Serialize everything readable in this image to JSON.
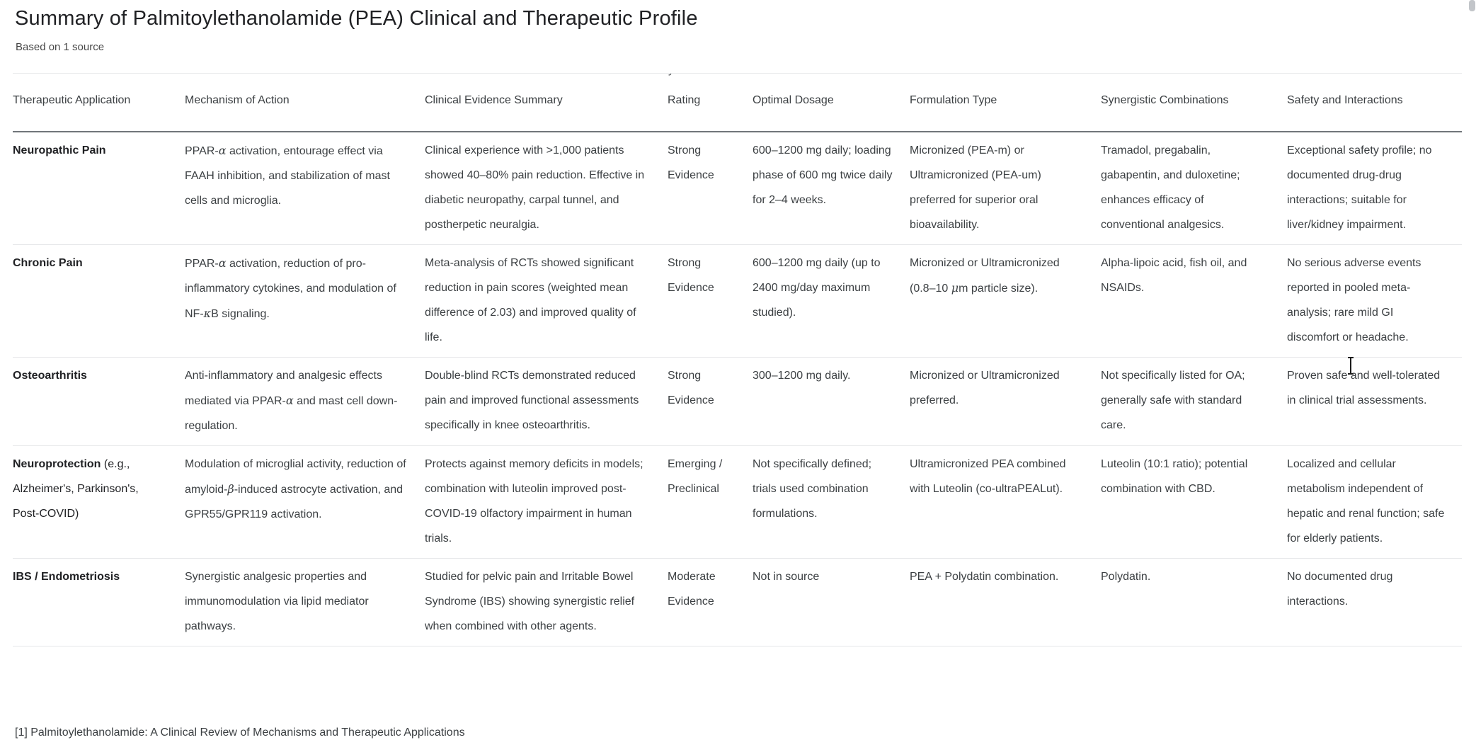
{
  "page": {
    "title": "Summary of Palmitoylethanolamide (PEA) Clinical and Therapeutic Profile",
    "subtitle": "Based on 1 source",
    "citation": "[1] Palmitoylethanolamide: A Clinical Review of Mechanisms and Therapeutic Applications"
  },
  "table": {
    "columns": [
      {
        "label": "Therapeutic Application"
      },
      {
        "label": "Mechanism of Action"
      },
      {
        "label": "Clinical Evidence Summary"
      },
      {
        "label": "Rating",
        "clipped_line_above": "y"
      },
      {
        "label": "Optimal Dosage"
      },
      {
        "label": "Formulation Type"
      },
      {
        "label": "Synergistic Combinations"
      },
      {
        "label": "Safety and Interactions"
      }
    ],
    "rows": [
      {
        "application": "Neuropathic Pain",
        "application_suffix": "",
        "mechanism": "PPAR-α activation, entourage effect via FAAH inhibition, and stabilization of mast cells and microglia.",
        "evidence": "Clinical experience with >1,000 patients showed 40–80% pain reduction. Effective in diabetic neuropathy, carpal tunnel, and postherpetic neuralgia.",
        "rating": "Strong Evidence",
        "dosage": "600–1200 mg daily; loading phase of 600 mg twice daily for 2–4 weeks.",
        "formulation": "Micronized (PEA-m) or Ultramicronized (PEA-um) preferred for superior oral bioavailability.",
        "synergy": "Tramadol, pregabalin, gabapentin, and duloxetine; enhances efficacy of conventional analgesics.",
        "safety": "Exceptional safety profile; no documented drug-drug interactions; suitable for liver/kidney impairment."
      },
      {
        "application": "Chronic Pain",
        "application_suffix": "",
        "mechanism": "PPAR-α activation, reduction of pro-inflammatory cytokines, and modulation of NF-κB signaling.",
        "evidence": "Meta-analysis of RCTs showed significant reduction in pain scores (weighted mean difference of 2.03) and improved quality of life.",
        "rating": "Strong Evidence",
        "dosage": "600–1200 mg daily (up to 2400 mg/day maximum studied).",
        "formulation": "Micronized or Ultramicronized (0.8–10 μm particle size).",
        "synergy": "Alpha-lipoic acid, fish oil, and NSAIDs.",
        "safety": "No serious adverse events reported in pooled meta-analysis; rare mild GI discomfort or headache."
      },
      {
        "application": "Osteoarthritis",
        "application_suffix": "",
        "mechanism": "Anti-inflammatory and analgesic effects mediated via PPAR-α and mast cell down-regulation.",
        "evidence": "Double-blind RCTs demonstrated reduced pain and improved functional assessments specifically in knee osteoarthritis.",
        "rating": "Strong Evidence",
        "dosage": "300–1200 mg daily.",
        "formulation": "Micronized or Ultramicronized preferred.",
        "synergy": "Not specifically listed for OA; generally safe with standard care.",
        "safety": "Proven safe and well-tolerated in clinical trial assessments."
      },
      {
        "application": "Neuroprotection",
        "application_suffix": " (e.g., Alzheimer's, Parkinson's, Post-COVID)",
        "mechanism": "Modulation of microglial activity, reduction of amyloid-β-induced astrocyte activation, and GPR55/GPR119 activation.",
        "evidence": "Protects against memory deficits in models; combination with luteolin improved post-COVID-19 olfactory impairment in human trials.",
        "rating": "Emerging / Preclinical",
        "dosage": "Not specifically defined; trials used combination formulations.",
        "formulation": "Ultramicronized PEA combined with Luteolin (co-ultraPEALut).",
        "synergy": "Luteolin (10:1 ratio); potential combination with CBD.",
        "safety": "Localized and cellular metabolism independent of hepatic and renal function; safe for elderly patients."
      },
      {
        "application": "IBS / Endometriosis",
        "application_suffix": "",
        "mechanism": "Synergistic analgesic properties and immunomodulation via lipid mediator pathways.",
        "evidence": "Studied for pelvic pain and Irritable Bowel Syndrome (IBS) showing synergistic relief when combined with other agents.",
        "rating": "Moderate Evidence",
        "dosage": "Not in source",
        "formulation": "PEA + Polydatin combination.",
        "synergy": "Polydatin.",
        "safety": "No documented drug interactions."
      }
    ]
  }
}
